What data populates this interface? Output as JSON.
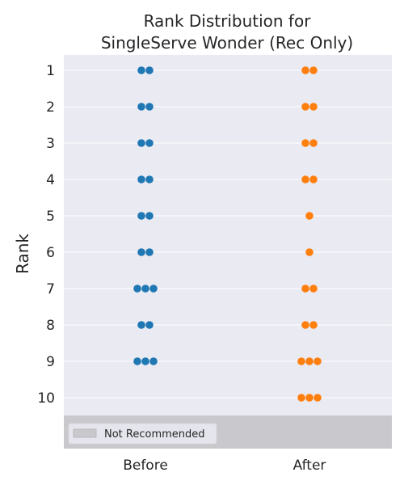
{
  "chart_data": {
    "type": "scatter",
    "subtype": "swarm",
    "title_lines": [
      "Rank Distribution for",
      "SingleServe Wonder (Rec Only)"
    ],
    "ylabel": "Rank",
    "categories": [
      "Before",
      "After"
    ],
    "rank_ticks": [
      "1",
      "2",
      "3",
      "4",
      "5",
      "6",
      "7",
      "8",
      "9",
      "10"
    ],
    "series": [
      {
        "name": "Before",
        "color": "#1f77b4",
        "counts": [
          {
            "rank": 1,
            "n": 2
          },
          {
            "rank": 2,
            "n": 2
          },
          {
            "rank": 3,
            "n": 2
          },
          {
            "rank": 4,
            "n": 2
          },
          {
            "rank": 5,
            "n": 2
          },
          {
            "rank": 6,
            "n": 2
          },
          {
            "rank": 7,
            "n": 3
          },
          {
            "rank": 8,
            "n": 2
          },
          {
            "rank": 9,
            "n": 3
          },
          {
            "rank": 10,
            "n": 0
          }
        ]
      },
      {
        "name": "After",
        "color": "#ff7f0e",
        "counts": [
          {
            "rank": 1,
            "n": 2
          },
          {
            "rank": 2,
            "n": 2
          },
          {
            "rank": 3,
            "n": 2
          },
          {
            "rank": 4,
            "n": 2
          },
          {
            "rank": 5,
            "n": 1
          },
          {
            "rank": 6,
            "n": 1
          },
          {
            "rank": 7,
            "n": 2
          },
          {
            "rank": 8,
            "n": 2
          },
          {
            "rank": 9,
            "n": 3
          },
          {
            "rank": 10,
            "n": 3
          }
        ]
      }
    ],
    "legend": {
      "label": "Not Recommended",
      "color": "#c9c8cc"
    },
    "legend_placement": "bottom-left",
    "grid": true
  },
  "colors": {
    "plot_bg": "#eaeaf2",
    "grid": "#ffffff",
    "not_recommended_band": "#c9c8cc"
  }
}
